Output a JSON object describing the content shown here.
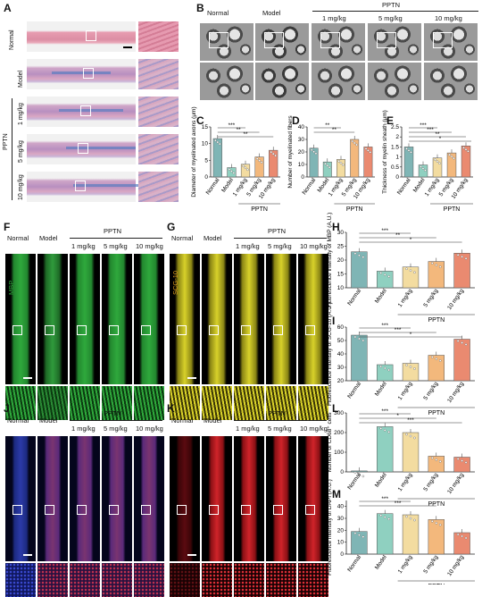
{
  "panels": {
    "A": {
      "label": "A",
      "rows": [
        "Normal",
        "Model",
        "1 mg/kg",
        "5 mg/kg",
        "10 mg/kg"
      ],
      "group": "PPTN"
    },
    "B": {
      "label": "B",
      "cols": [
        "Normal",
        "Model",
        "1 mg/kg",
        "5 mg/kg",
        "10 mg/kg"
      ],
      "group": "PPTN"
    },
    "C": {
      "label": "C"
    },
    "D": {
      "label": "D"
    },
    "E": {
      "label": "E"
    },
    "F": {
      "label": "F",
      "cols": [
        "Normal",
        "Model",
        "1 mg/kg",
        "5 mg/kg",
        "10 mg/kg"
      ],
      "group": "PPTN",
      "stain": "MBP"
    },
    "G": {
      "label": "G",
      "cols": [
        "Normal",
        "Model",
        "1 mg/kg",
        "5 mg/kg",
        "10 mg/kg"
      ],
      "group": "PPTN",
      "stain": "SCG-10"
    },
    "H": {
      "label": "H"
    },
    "I": {
      "label": "I"
    },
    "J": {
      "label": "J",
      "cols": [
        "Normal",
        "Model",
        "1 mg/kg",
        "5 mg/kg",
        "10 mg/kg"
      ],
      "group": "PPTN"
    },
    "K": {
      "label": "K",
      "cols": [
        "Normal",
        "Model",
        "1 mg/kg",
        "5 mg/kg",
        "10 mg/kg"
      ],
      "group": "PPTN"
    },
    "L": {
      "label": "L"
    },
    "M": {
      "label": "M"
    }
  },
  "colors": {
    "normal": "#7fb5b5",
    "model": "#8fd0c0",
    "mg1": "#f3dca0",
    "mg5": "#f3b87c",
    "mg10": "#ea8a70",
    "he_pink": "#e7a7b8",
    "masson_blue": "#5a7ec0",
    "mbp_green": "#2fa83c",
    "scg_yellow": "#d8d12a",
    "dapi_blue": "#2b3aa8",
    "cd68_red": "#d0242a"
  },
  "chart_data": [
    {
      "type": "bar",
      "panel": "C",
      "ylabel": "Diameter of myelinated axons (μm)",
      "categories": [
        "Normal",
        "Model",
        "1 mg/kg",
        "5 mg/kg",
        "10 mg/kg"
      ],
      "group_label": "PPTN",
      "values": [
        11.5,
        2.8,
        3.8,
        6.0,
        8.0
      ],
      "ylim": [
        0,
        15
      ],
      "yticks": [
        0,
        5,
        10,
        15
      ],
      "significance": [
        "***",
        "**",
        "**"
      ]
    },
    {
      "type": "bar",
      "panel": "D",
      "ylabel": "Number of myelinated fibers",
      "categories": [
        "Normal",
        "Model",
        "1 mg/kg",
        "5 mg/kg",
        "10 mg/kg"
      ],
      "group_label": "PPTN",
      "values": [
        23,
        12,
        14,
        30,
        24
      ],
      "ylim": [
        0,
        40
      ],
      "yticks": [
        0,
        10,
        20,
        30,
        40
      ],
      "significance": [
        "**",
        "**"
      ]
    },
    {
      "type": "bar",
      "panel": "E",
      "ylabel": "Thickness of myelin sheath (μm)",
      "categories": [
        "Normal",
        "Model",
        "1 mg/kg",
        "5 mg/kg",
        "10 mg/kg"
      ],
      "group_label": "PPTN",
      "values": [
        1.5,
        0.6,
        0.95,
        1.2,
        1.55
      ],
      "ylim": [
        0,
        2.5
      ],
      "yticks": [
        0.0,
        0.5,
        1.0,
        1.5,
        2.0,
        2.5
      ],
      "significance": [
        "***",
        "***",
        "**",
        "*"
      ]
    },
    {
      "type": "bar",
      "panel": "H",
      "ylabel": "Fluorescence intensity of MBP (A.U.)",
      "categories": [
        "Normal",
        "Model",
        "1 mg/kg",
        "5 mg/kg",
        "10 mg/kg"
      ],
      "group_label": "PPTN",
      "values": [
        23,
        16,
        17.5,
        19.5,
        22.5
      ],
      "ylim": [
        10,
        30
      ],
      "yticks": [
        10,
        15,
        20,
        25,
        30
      ],
      "significance": [
        "***",
        "**",
        "*"
      ]
    },
    {
      "type": "bar",
      "panel": "I",
      "ylabel": "Fluorescence intensity of SCG-10 (A.U.)",
      "categories": [
        "Normal",
        "Model",
        "1 mg/kg",
        "5 mg/kg",
        "10 mg/kg"
      ],
      "group_label": "PPTN",
      "values": [
        54,
        32,
        33,
        39,
        51
      ],
      "ylim": [
        20,
        60
      ],
      "yticks": [
        20,
        30,
        40,
        50,
        60
      ],
      "significance": [
        "***",
        "***",
        "*"
      ]
    },
    {
      "type": "bar",
      "panel": "L",
      "ylabel": "Number of CD68⁺ cells",
      "categories": [
        "Normal",
        "Model",
        "1 mg/kg",
        "5 mg/kg",
        "10 mg/kg"
      ],
      "group_label": "PPTN",
      "values": [
        5,
        230,
        200,
        80,
        75
      ],
      "ylim": [
        0,
        300
      ],
      "yticks": [
        0,
        100,
        200,
        300
      ],
      "significance": [
        "***",
        "*",
        "***"
      ]
    },
    {
      "type": "bar",
      "panel": "M",
      "ylabel": "Fluorescence intensity of DAPI (A.U.)",
      "categories": [
        "Normal",
        "Model",
        "1 mg/kg",
        "5 mg/kg",
        "10 mg/kg"
      ],
      "group_label": "PPTN",
      "values": [
        19,
        34,
        33,
        29,
        18
      ],
      "ylim": [
        0,
        45
      ],
      "yticks": [
        0,
        10,
        20,
        30,
        40
      ],
      "significance": [
        "***",
        "***"
      ]
    }
  ]
}
